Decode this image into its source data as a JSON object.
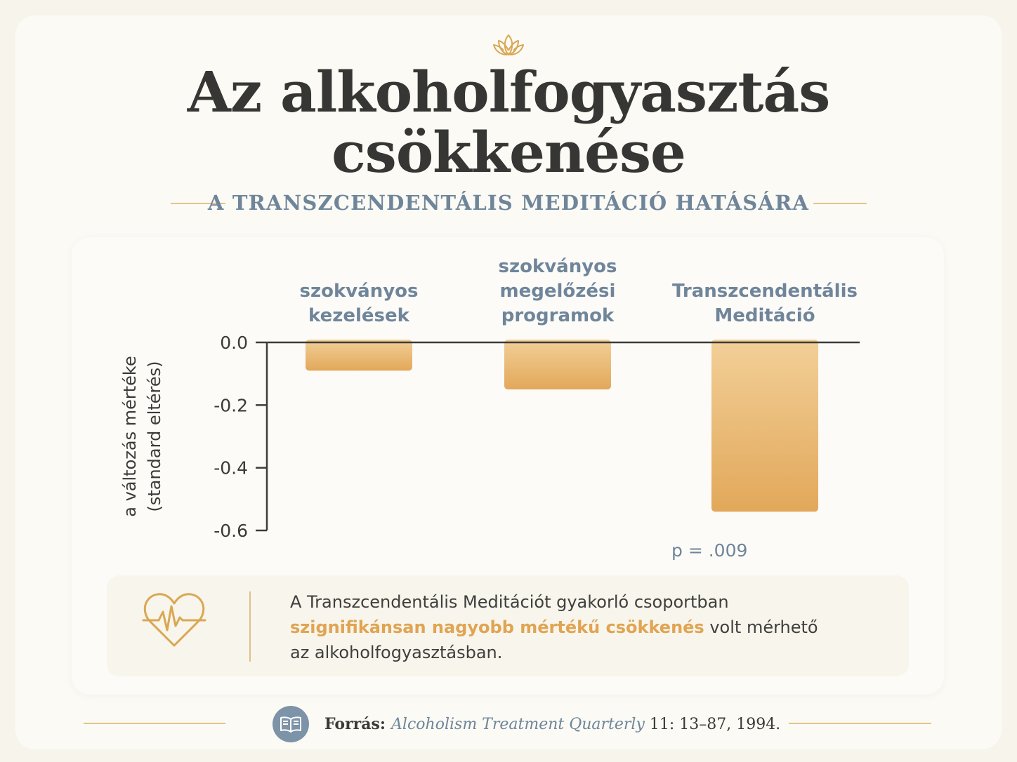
{
  "header": {
    "title_line1": "Az alkoholfogyasztás",
    "title_line2": "csökkenése",
    "subtitle": "A TRANSZCENDENTÁLIS MEDITÁCIÓ HATÁSÁRA"
  },
  "icons": {
    "header": "lotus-icon",
    "note": "heartbeat-icon",
    "source": "book-icon"
  },
  "colors": {
    "accent": "#e0a452",
    "bar_top": "#f2cf98",
    "bar_bottom": "#e2a85a",
    "label_blue": "#6f859a",
    "background": "#fbfaf5"
  },
  "chart_data": {
    "type": "bar",
    "categories": [
      [
        "szokványos",
        "kezelések"
      ],
      [
        "szokványos",
        "megelőzési",
        "programok"
      ],
      [
        "Transzcendentális",
        "Meditáció"
      ]
    ],
    "values": [
      -0.09,
      -0.15,
      -0.54
    ],
    "ylabel_lines": [
      "a változás mértéke",
      "(standard eltérés)"
    ],
    "ylim": [
      -0.6,
      0.0
    ],
    "yticks": [
      0.0,
      -0.2,
      -0.4,
      -0.6
    ],
    "ytick_labels": [
      "0.0",
      "-0.2",
      "-0.4",
      "-0.6"
    ],
    "grid": false,
    "annotation": "p = .009"
  },
  "note": {
    "line1": "A Transzcendentális Meditációt gyakorló csoportban",
    "highlight": "szignifikánsan nagyobb mértékű csökkenés",
    "line2_rest": " volt mérhető",
    "line3": "az alkoholfogyasztásban."
  },
  "source": {
    "label": "Forrás:",
    "journal": "Alcoholism Treatment Quarterly",
    "citation": " 11: 13–87, 1994."
  }
}
